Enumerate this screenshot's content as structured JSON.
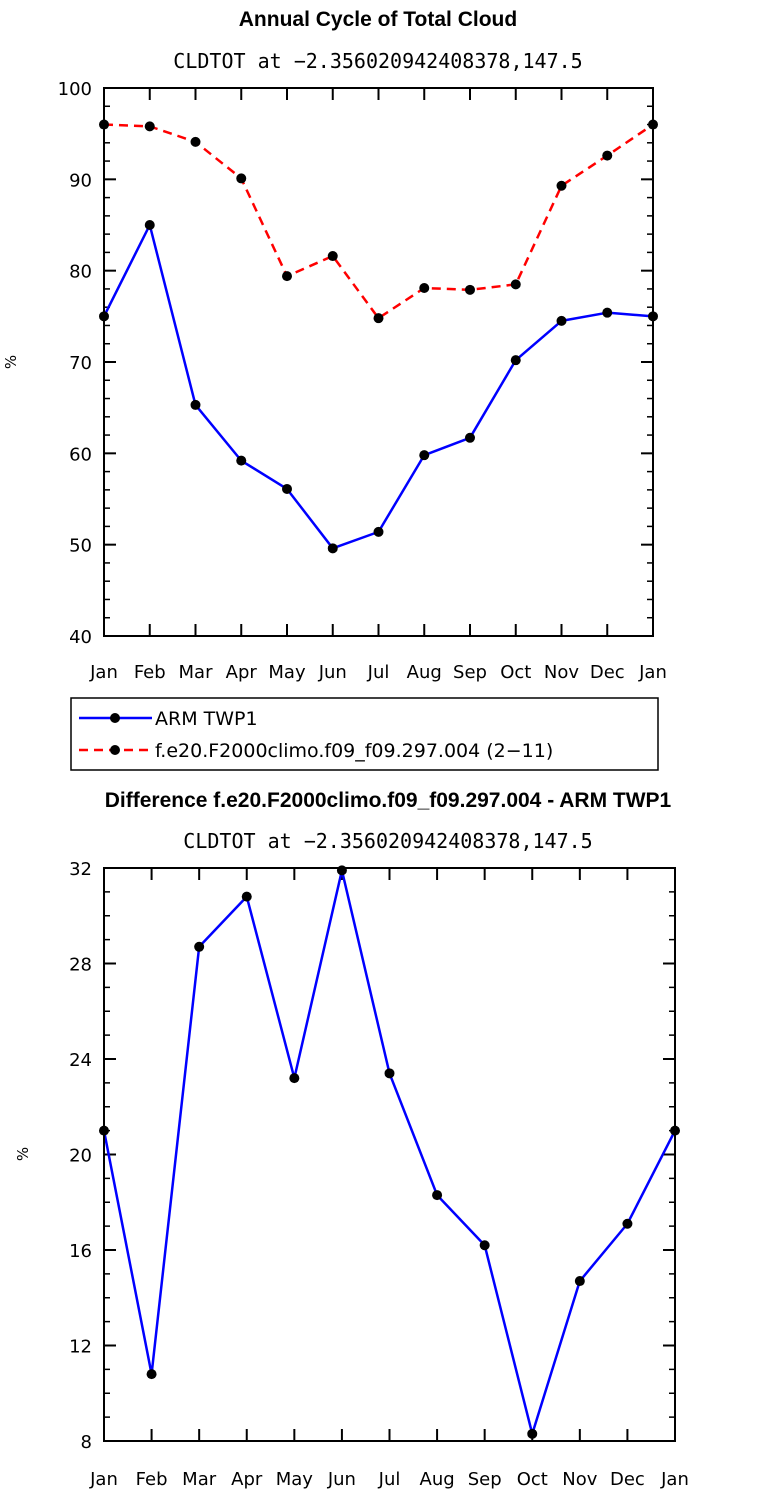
{
  "chart_data": [
    {
      "type": "line",
      "title": "Annual Cycle of Total Cloud",
      "subtitle": "CLDTOT at −2.356020942408378,147.5",
      "ylabel": "%",
      "xlabel": "",
      "ylim": [
        40,
        100
      ],
      "yticks": [
        "40",
        "50",
        "60",
        "70",
        "80",
        "90",
        "100"
      ],
      "categories": [
        "Jan",
        "Feb",
        "Mar",
        "Apr",
        "May",
        "Jun",
        "Jul",
        "Aug",
        "Sep",
        "Oct",
        "Nov",
        "Dec",
        "Jan"
      ],
      "series": [
        {
          "name": "ARM TWP1",
          "color": "#0000ff",
          "style": "solid",
          "values": [
            75.0,
            85.0,
            65.3,
            59.2,
            56.1,
            49.6,
            51.4,
            59.8,
            61.7,
            70.2,
            74.5,
            75.4,
            75.0
          ]
        },
        {
          "name": "f.e20.F2000climo.f09_f09.297.004 (2−11)",
          "color": "#ff0000",
          "style": "dashed",
          "values": [
            96.0,
            95.8,
            94.1,
            90.1,
            79.4,
            81.6,
            74.8,
            78.1,
            77.9,
            78.5,
            89.3,
            92.6,
            96.0
          ]
        }
      ],
      "legend": "below-left"
    },
    {
      "type": "line",
      "title": "Difference f.e20.F2000climo.f09_f09.297.004 - ARM TWP1",
      "subtitle": "CLDTOT at −2.356020942408378,147.5",
      "ylabel": "%",
      "xlabel": "",
      "ylim": [
        8,
        32
      ],
      "yticks": [
        "8",
        "12",
        "16",
        "20",
        "24",
        "28",
        "32"
      ],
      "categories": [
        "Jan",
        "Feb",
        "Mar",
        "Apr",
        "May",
        "Jun",
        "Jul",
        "Aug",
        "Sep",
        "Oct",
        "Nov",
        "Dec",
        "Jan"
      ],
      "series": [
        {
          "color": "#0000ff",
          "style": "solid",
          "values": [
            21.0,
            10.8,
            28.7,
            30.8,
            23.2,
            31.9,
            23.4,
            18.3,
            16.2,
            8.3,
            14.7,
            17.1,
            21.0
          ]
        }
      ]
    }
  ]
}
